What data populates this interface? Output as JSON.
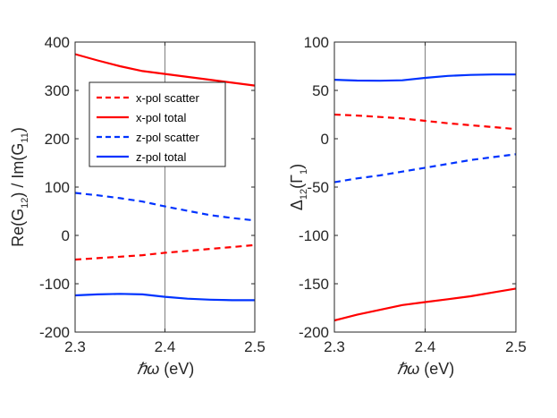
{
  "chart_data": [
    {
      "type": "line",
      "ylabel_parts": [
        "Re(G",
        "12",
        ") / Im(G",
        "11",
        ")"
      ],
      "xlabel_hbar": "ℏ",
      "xlabel_omega": "ω",
      "xlabel_unit": " (eV)",
      "xlim": [
        2.3,
        2.5
      ],
      "ylim": [
        -200,
        400
      ],
      "xticks": [
        2.3,
        2.4,
        2.5
      ],
      "xtick_labels": [
        "2.3",
        "2.4",
        "2.5"
      ],
      "yticks": [
        -200,
        -100,
        0,
        100,
        200,
        300,
        400
      ],
      "ytick_labels": [
        "-200",
        "-100",
        "0",
        "100",
        "200",
        "300",
        "400"
      ],
      "vline_x": 2.4,
      "legend_position": "upper-left-center",
      "series": [
        {
          "name": "x-pol scatter",
          "color": "#ff0000",
          "dash": "dashed",
          "x": [
            2.3,
            2.325,
            2.35,
            2.375,
            2.4,
            2.425,
            2.45,
            2.475,
            2.5
          ],
          "y": [
            -50,
            -47,
            -44,
            -41,
            -36,
            -32,
            -28,
            -24,
            -20
          ]
        },
        {
          "name": "x-pol total",
          "color": "#ff0000",
          "dash": "solid",
          "x": [
            2.3,
            2.325,
            2.35,
            2.375,
            2.4,
            2.425,
            2.45,
            2.475,
            2.5
          ],
          "y": [
            375,
            362,
            350,
            340,
            334,
            328,
            322,
            316,
            310
          ]
        },
        {
          "name": "z-pol scatter",
          "color": "#0033ff",
          "dash": "dashed",
          "x": [
            2.3,
            2.325,
            2.35,
            2.375,
            2.4,
            2.425,
            2.45,
            2.475,
            2.5
          ],
          "y": [
            88,
            83,
            77,
            70,
            60,
            51,
            42,
            36,
            31
          ]
        },
        {
          "name": "z-pol total",
          "color": "#0033ff",
          "dash": "solid",
          "x": [
            2.3,
            2.325,
            2.35,
            2.375,
            2.4,
            2.425,
            2.45,
            2.475,
            2.5
          ],
          "y": [
            -124,
            -122,
            -121,
            -122,
            -127,
            -131,
            -133,
            -134,
            -134
          ]
        }
      ]
    },
    {
      "type": "line",
      "ylabel_parts": [
        "Δ",
        "12",
        "(Γ",
        "1",
        ")"
      ],
      "xlabel_hbar": "ℏ",
      "xlabel_omega": "ω",
      "xlabel_unit": " (eV)",
      "xlim": [
        2.3,
        2.5
      ],
      "ylim": [
        -200,
        100
      ],
      "xticks": [
        2.3,
        2.4,
        2.5
      ],
      "xtick_labels": [
        "2.3",
        "2.4",
        "2.5"
      ],
      "yticks": [
        -200,
        -150,
        -100,
        -50,
        0,
        50,
        100
      ],
      "ytick_labels": [
        "-200",
        "-150",
        "-100",
        "-50",
        "0",
        "50",
        "100"
      ],
      "vline_x": 2.4,
      "series": [
        {
          "name": "x-pol scatter",
          "color": "#ff0000",
          "dash": "dashed",
          "x": [
            2.3,
            2.325,
            2.35,
            2.375,
            2.4,
            2.425,
            2.45,
            2.475,
            2.5
          ],
          "y": [
            25,
            24,
            22.5,
            21,
            18.5,
            16,
            14,
            12,
            10
          ]
        },
        {
          "name": "x-pol total",
          "color": "#ff0000",
          "dash": "solid",
          "x": [
            2.3,
            2.325,
            2.35,
            2.375,
            2.4,
            2.425,
            2.45,
            2.475,
            2.5
          ],
          "y": [
            -188,
            -182,
            -177,
            -172,
            -169,
            -166,
            -163,
            -159,
            -155
          ]
        },
        {
          "name": "z-pol scatter",
          "color": "#0033ff",
          "dash": "dashed",
          "x": [
            2.3,
            2.325,
            2.35,
            2.375,
            2.4,
            2.425,
            2.45,
            2.475,
            2.5
          ],
          "y": [
            -45,
            -41,
            -38,
            -34,
            -30,
            -26,
            -22,
            -19,
            -16
          ]
        },
        {
          "name": "z-pol total",
          "color": "#0033ff",
          "dash": "solid",
          "x": [
            2.3,
            2.325,
            2.35,
            2.375,
            2.4,
            2.425,
            2.45,
            2.475,
            2.5
          ],
          "y": [
            61,
            60.2,
            60,
            60.5,
            63,
            65,
            66,
            66.5,
            66.5
          ]
        }
      ]
    }
  ],
  "legend": {
    "items": [
      {
        "label": "x-pol scatter",
        "color": "#ff0000",
        "dash": "dashed"
      },
      {
        "label": "x-pol total",
        "color": "#ff0000",
        "dash": "solid"
      },
      {
        "label": "z-pol scatter",
        "color": "#0033ff",
        "dash": "dashed"
      },
      {
        "label": "z-pol total",
        "color": "#0033ff",
        "dash": "solid"
      }
    ]
  }
}
